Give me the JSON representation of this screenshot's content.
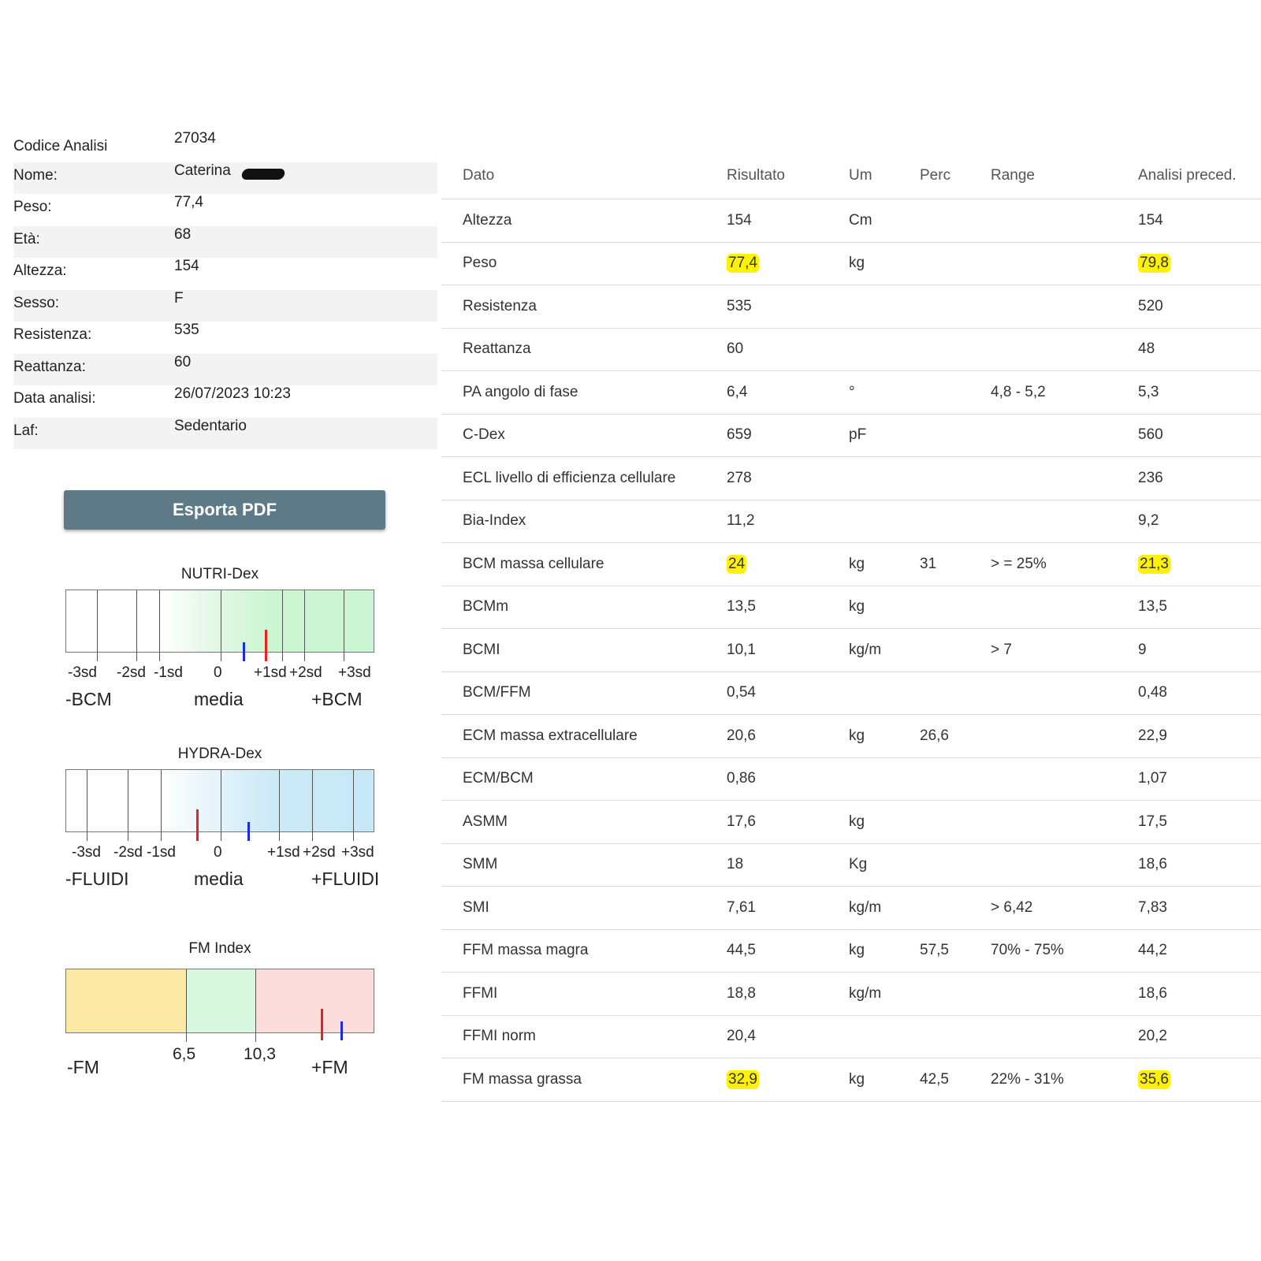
{
  "info": [
    {
      "label": "Codice Analisi",
      "value": "27034"
    },
    {
      "label": "Nome:",
      "value": "Caterina"
    },
    {
      "label": "Peso:",
      "value": "77,4"
    },
    {
      "label": "Età:",
      "value": "68"
    },
    {
      "label": "Altezza:",
      "value": "154"
    },
    {
      "label": "Sesso:",
      "value": "F"
    },
    {
      "label": "Resistenza:",
      "value": "535"
    },
    {
      "label": "Reattanza:",
      "value": "60"
    },
    {
      "label": "Data analisi:",
      "value": "26/07/2023 10:23"
    },
    {
      "label": "Laf:",
      "value": "Sedentario"
    }
  ],
  "export_button": "Esporta PDF",
  "nutri": {
    "title": "NUTRI-Dex",
    "ticks": [
      "-3sd",
      "-2sd",
      "-1sd",
      "0",
      "+1sd",
      "+2sd",
      "+3sd"
    ],
    "left_label": "-BCM",
    "center_label": "media",
    "right_label": "+BCM"
  },
  "hydra": {
    "title": "HYDRA-Dex",
    "ticks": [
      "-3sd",
      "-2sd",
      "-1sd",
      "0",
      "+1sd",
      "+2sd",
      "+3sd"
    ],
    "left_label": "-FLUIDI",
    "center_label": "media",
    "right_label": "+FLUIDI"
  },
  "fm_index": {
    "title": "FM Index",
    "thresholds": [
      "6,5",
      "10,3"
    ],
    "left_label": "-FM",
    "right_label": "+FM",
    "colors": {
      "low": "#fde9a6",
      "normal": "#d9f7df",
      "high": "#fddcdc"
    }
  },
  "table": {
    "headers": [
      "Dato",
      "Risultato",
      "Um",
      "Perc",
      "Range",
      "Analisi preced."
    ],
    "rows": [
      {
        "dato": "Altezza",
        "risultato": "154",
        "um": "Cm",
        "perc": "",
        "range": "",
        "prec": "154"
      },
      {
        "dato": "Peso",
        "risultato": "77,4",
        "um": "kg",
        "perc": "",
        "range": "",
        "prec": "79,8",
        "highlight": true
      },
      {
        "dato": "Resistenza",
        "risultato": "535",
        "um": "",
        "perc": "",
        "range": "",
        "prec": "520"
      },
      {
        "dato": "Reattanza",
        "risultato": "60",
        "um": "",
        "perc": "",
        "range": "",
        "prec": "48"
      },
      {
        "dato": "PA angolo di fase",
        "risultato": "6,4",
        "um": "°",
        "perc": "",
        "range": "4,8 - 5,2",
        "prec": "5,3"
      },
      {
        "dato": "C-Dex",
        "risultato": "659",
        "um": "pF",
        "perc": "",
        "range": "",
        "prec": "560"
      },
      {
        "dato": "ECL livello di efficienza cellulare",
        "risultato": "278",
        "um": "",
        "perc": "",
        "range": "",
        "prec": "236"
      },
      {
        "dato": "Bia-Index",
        "risultato": "11,2",
        "um": "",
        "perc": "",
        "range": "",
        "prec": "9,2"
      },
      {
        "dato": "BCM massa cellulare",
        "risultato": "24",
        "um": "kg",
        "perc": "31",
        "range": "> = 25%",
        "prec": "21,3",
        "highlight": true
      },
      {
        "dato": "BCMm",
        "risultato": "13,5",
        "um": "kg",
        "perc": "",
        "range": "",
        "prec": "13,5"
      },
      {
        "dato": "BCMI",
        "risultato": "10,1",
        "um": "kg/m",
        "perc": "",
        "range": "> 7",
        "prec": "9"
      },
      {
        "dato": "BCM/FFM",
        "risultato": "0,54",
        "um": "",
        "perc": "",
        "range": "",
        "prec": "0,48"
      },
      {
        "dato": "ECM massa extracellulare",
        "risultato": "20,6",
        "um": "kg",
        "perc": "26,6",
        "range": "",
        "prec": "22,9"
      },
      {
        "dato": "ECM/BCM",
        "risultato": "0,86",
        "um": "",
        "perc": "",
        "range": "",
        "prec": "1,07"
      },
      {
        "dato": "ASMM",
        "risultato": "17,6",
        "um": "kg",
        "perc": "",
        "range": "",
        "prec": "17,5"
      },
      {
        "dato": "SMM",
        "risultato": "18",
        "um": "Kg",
        "perc": "",
        "range": "",
        "prec": "18,6"
      },
      {
        "dato": "SMI",
        "risultato": "7,61",
        "um": "kg/m",
        "perc": "",
        "range": "> 6,42",
        "prec": "7,83"
      },
      {
        "dato": "FFM massa magra",
        "risultato": "44,5",
        "um": "kg",
        "perc": "57,5",
        "range": "70% - 75%",
        "prec": "44,2"
      },
      {
        "dato": "FFMI",
        "risultato": "18,8",
        "um": "kg/m",
        "perc": "",
        "range": "",
        "prec": "18,6"
      },
      {
        "dato": "FFMI norm",
        "risultato": "20,4",
        "um": "",
        "perc": "",
        "range": "",
        "prec": "20,2"
      },
      {
        "dato": "FM massa grassa",
        "risultato": "32,9",
        "um": "kg",
        "perc": "42,5",
        "range": "22% - 31%",
        "prec": "35,6",
        "highlight": true
      }
    ]
  },
  "colors": {
    "highlight": "#fff200",
    "button": "#5e7a87",
    "current_marker": "#e8231d",
    "previous_marker": "#1a2ce0"
  }
}
